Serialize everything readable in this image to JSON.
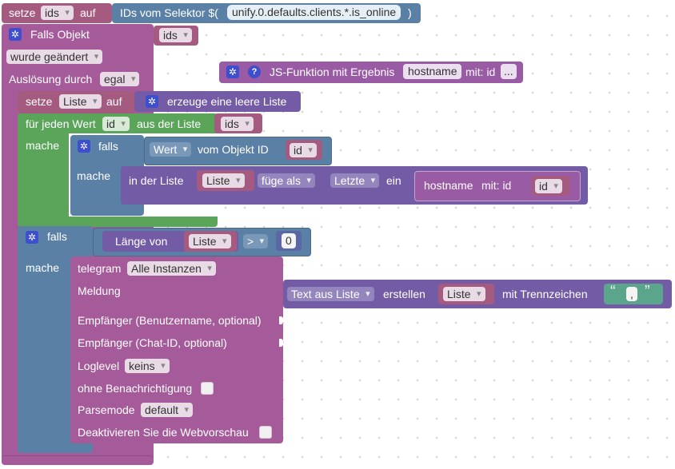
{
  "top_set": {
    "label_set": "setze",
    "var": "ids",
    "label_to": "auf",
    "selector_label": "IDs vom Selektor $(",
    "selector_value": "unify.0.defaults.clients.*.is_online",
    "selector_close": ")"
  },
  "trigger": {
    "label_if_object": "Falls Objekt",
    "object_var": "ids",
    "condition": "wurde geändert",
    "label_triggered_by": "Auslösung durch",
    "triggered_by": "egal"
  },
  "js_function": {
    "label": "JS-Funktion mit Ergebnis",
    "name": "hostname",
    "param_label": "mit: id",
    "more": "..."
  },
  "set_list": {
    "label_set": "setze",
    "var": "Liste",
    "label_to": "auf",
    "value_label": "erzeuge eine leere Liste"
  },
  "for_each": {
    "label_for_each": "für jeden Wert",
    "var": "id",
    "label_from_list": "aus der Liste",
    "list_var": "ids",
    "label_do": "mache"
  },
  "if_inner": {
    "label_if": "falls",
    "value_type": "Wert",
    "label_from_object": "vom Objekt ID",
    "id_var": "id",
    "label_do": "mache"
  },
  "list_insert": {
    "label_in_list": "in der Liste",
    "list_var": "Liste",
    "mode": "füge als",
    "position": "Letzte",
    "label_insert": "ein",
    "func_name": "hostname",
    "param_label": "mit:  id",
    "id_var": "id"
  },
  "if_outer": {
    "label_if": "falls",
    "label_length": "Länge von",
    "list_var": "Liste",
    "operator": ">",
    "number": "0",
    "label_do": "mache"
  },
  "telegram": {
    "label": "telegram",
    "instance": "Alle Instanzen",
    "label_message": "Meldung",
    "text_from_list": "Text aus Liste",
    "label_create": "erstellen",
    "list_var": "Liste",
    "label_separator": "mit Trennzeichen",
    "separator": ",",
    "label_recipient_user": "Empfänger (Benutzername, optional)",
    "label_recipient_chat": "Empfänger (Chat-ID, optional)",
    "label_loglevel": "Loglevel",
    "loglevel": "keins",
    "label_silent": "ohne Benachrichtigung",
    "label_parsemode": "Parsemode",
    "parsemode": "default",
    "label_no_preview": "Deaktivieren Sie die Webvorschau"
  },
  "colors": {
    "event": "#a55b99",
    "variable": "#a55b80",
    "control": "#5b80a5",
    "loop": "#5ba55b",
    "list": "#745ba5",
    "function": "#9a5ba5",
    "text": "#5ba58c",
    "icon": "#3d4ecf"
  }
}
